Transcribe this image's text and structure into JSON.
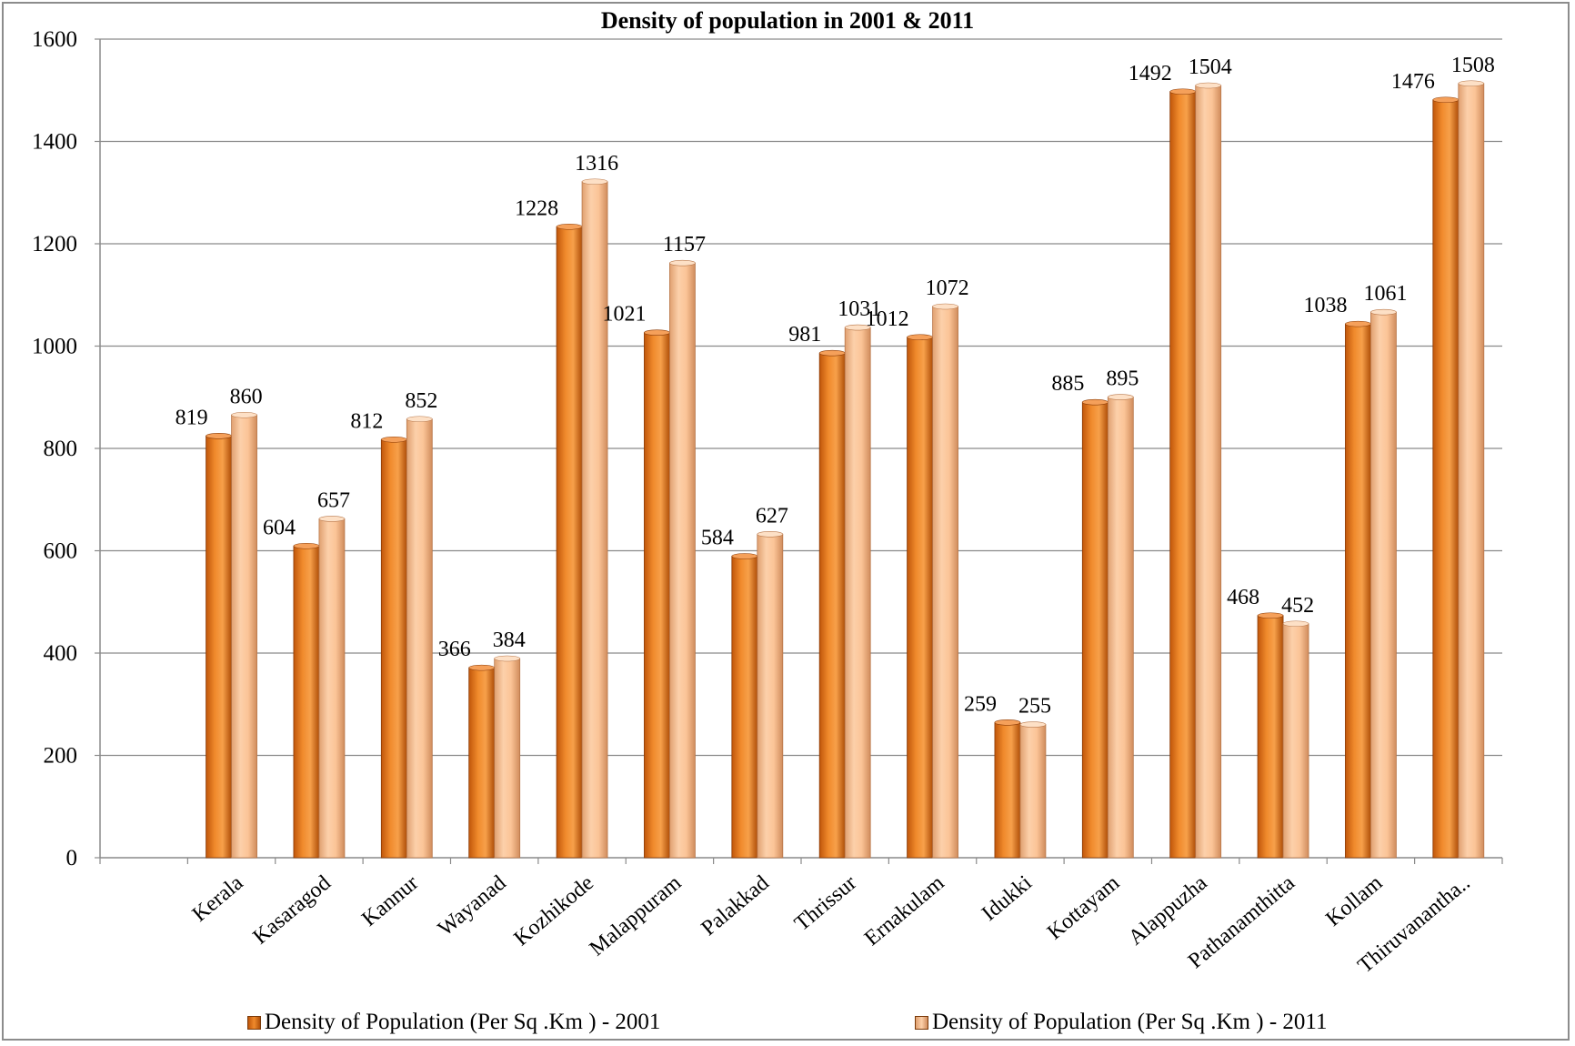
{
  "chart_data": {
    "type": "bar",
    "title": "Density of population  in 2001 & 2011",
    "categories": [
      "Kerala",
      "Kasaragod",
      "Kannur",
      "Wayanad",
      "Kozhikode",
      "Malappuram",
      "Palakkad",
      "Thrissur",
      "Ernakulam",
      "Idukki",
      "Kottayam",
      "Alappuzha",
      "Pathanamthitta",
      "Kollam",
      "Thiruvanantha.."
    ],
    "series": [
      {
        "name": "Density of Population (Per Sq .Km ) -  2001",
        "color": "#e36c0a",
        "values": [
          819,
          604,
          812,
          366,
          1228,
          1021,
          584,
          981,
          1012,
          259,
          885,
          1492,
          468,
          1038,
          1476
        ]
      },
      {
        "name": "Density of Population (Per Sq .Km ) -  2011",
        "color": "#f4b183",
        "values": [
          860,
          657,
          852,
          384,
          1316,
          1157,
          627,
          1031,
          1072,
          255,
          895,
          1504,
          452,
          1061,
          1508
        ]
      }
    ],
    "ylim": [
      0,
      1600
    ],
    "yticks": [
      0,
      200,
      400,
      600,
      800,
      1000,
      1200,
      1400,
      1600
    ],
    "grid": true,
    "legend_position": "bottom",
    "xlabel": "",
    "ylabel": ""
  }
}
